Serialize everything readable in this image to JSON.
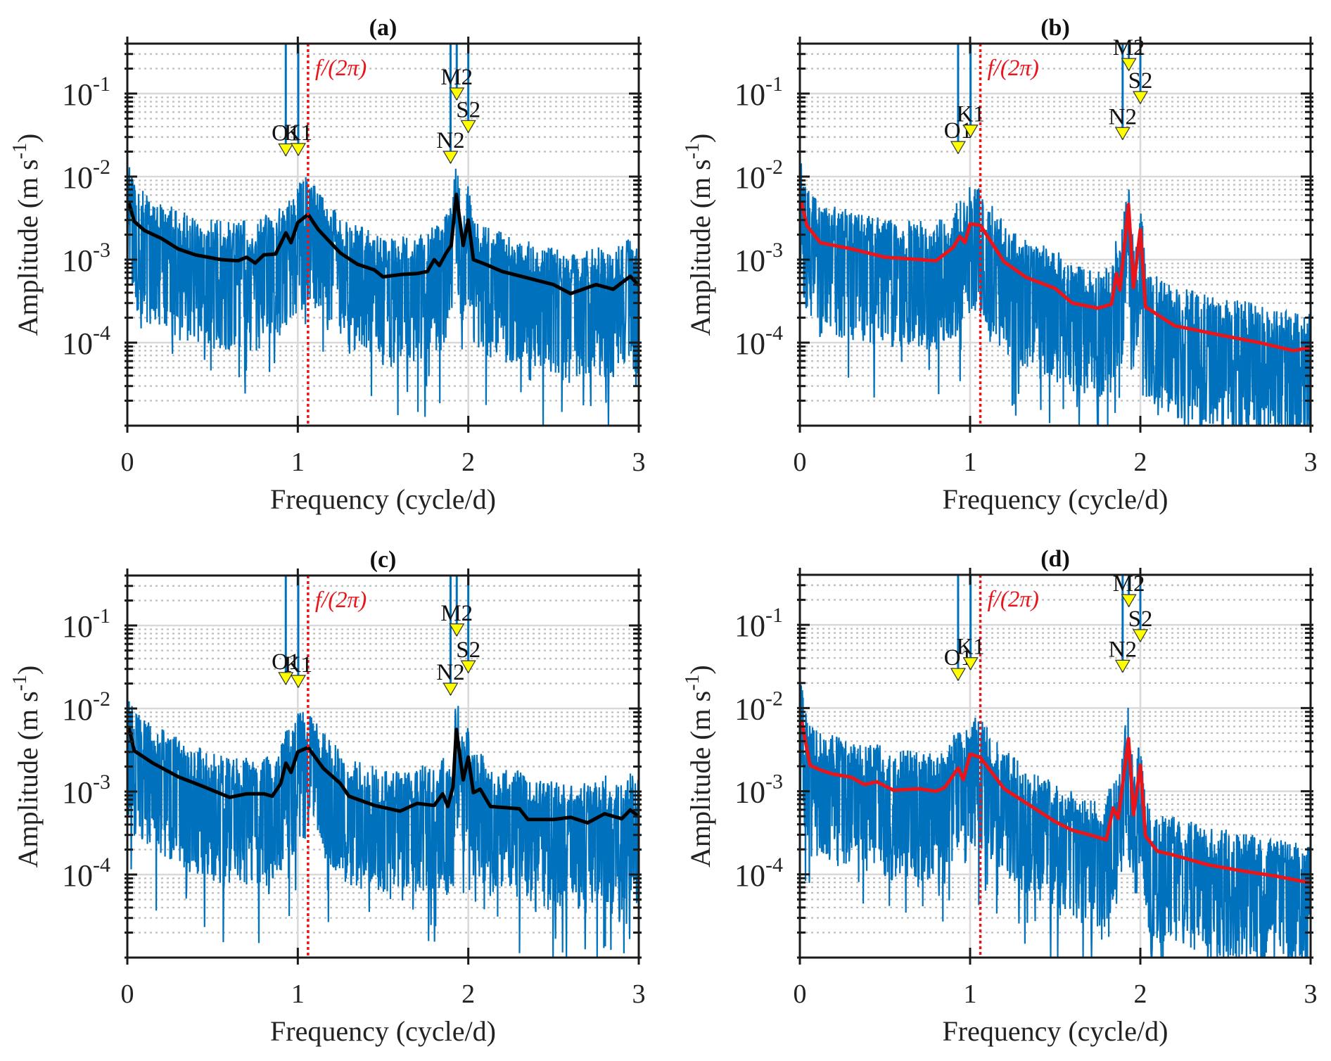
{
  "figure": {
    "panels": [
      "a",
      "b",
      "c",
      "d"
    ]
  },
  "chart_data": [
    {
      "panel": "a",
      "type": "line",
      "title": "(a)",
      "xlabel": "Frequency (cycle/d)",
      "ylabel": "Amplitude (m s-1)",
      "ylabel_parts": {
        "main": "Amplitude (m s",
        "sup": "-1",
        "end": ")"
      },
      "xlim": [
        0,
        3
      ],
      "ylim": [
        1e-05,
        0.4
      ],
      "yscale": "log",
      "xticks": [
        0,
        1,
        2,
        3
      ],
      "yticks": [
        {
          "base": "10",
          "exp": "-1",
          "value": 0.1
        },
        {
          "base": "10",
          "exp": "-2",
          "value": 0.01
        },
        {
          "base": "10",
          "exp": "-3",
          "value": 0.001
        },
        {
          "base": "10",
          "exp": "-4",
          "value": 0.0001
        }
      ],
      "grid": true,
      "inertial_frequency": {
        "label": "f/(2π)",
        "x": 1.06,
        "color": "#e8161b",
        "style": "dotted"
      },
      "raw_spectrum": {
        "name": "raw amplitude",
        "color": "#0072bd",
        "start_spike": 0.07
      },
      "smoothed": {
        "name": "smoothed amplitude",
        "color": "#000000",
        "x": [
          0.01,
          0.04,
          0.1,
          0.2,
          0.3,
          0.4,
          0.55,
          0.65,
          0.7,
          0.75,
          0.8,
          0.87,
          0.93,
          0.96,
          1.0,
          1.06,
          1.12,
          1.25,
          1.35,
          1.45,
          1.5,
          1.6,
          1.7,
          1.76,
          1.8,
          1.83,
          1.87,
          1.9,
          1.93,
          1.97,
          2.0,
          2.03,
          2.1,
          2.2,
          2.35,
          2.5,
          2.6,
          2.75,
          2.85,
          2.95,
          3.0
        ],
        "y": [
          0.0048,
          0.0029,
          0.00225,
          0.0018,
          0.00134,
          0.00114,
          0.001,
          0.00097,
          0.00107,
          0.00091,
          0.00114,
          0.00117,
          0.0021,
          0.0016,
          0.0028,
          0.0035,
          0.0023,
          0.0012,
          0.00088,
          0.00075,
          0.00062,
          0.00066,
          0.00068,
          0.00072,
          0.001,
          0.00085,
          0.0012,
          0.00148,
          0.0061,
          0.00148,
          0.003,
          0.001,
          0.00088,
          0.00072,
          0.0006,
          0.0005,
          0.00039,
          0.0005,
          0.00044,
          0.00063,
          0.00049
        ]
      },
      "constituents": [
        {
          "label": "O1",
          "x": 0.9295,
          "amplitude": 0.0178
        },
        {
          "label": "K1",
          "x": 1.0027,
          "amplitude": 0.018
        },
        {
          "label": "N2",
          "x": 1.896,
          "amplitude": 0.0145
        },
        {
          "label": "M2",
          "x": 1.9323,
          "amplitude": 0.084
        },
        {
          "label": "S2",
          "x": 2.0,
          "amplitude": 0.034
        }
      ]
    },
    {
      "panel": "b",
      "type": "line",
      "title": "(b)",
      "xlabel": "Frequency (cycle/d)",
      "ylabel": "Amplitude (m s-1)",
      "ylabel_parts": {
        "main": "Amplitude (m s",
        "sup": "-1",
        "end": ")"
      },
      "xlim": [
        0,
        3
      ],
      "ylim": [
        1e-05,
        0.4
      ],
      "yscale": "log",
      "xticks": [
        0,
        1,
        2,
        3
      ],
      "yticks": [
        {
          "base": "10",
          "exp": "-1",
          "value": 0.1
        },
        {
          "base": "10",
          "exp": "-2",
          "value": 0.01
        },
        {
          "base": "10",
          "exp": "-3",
          "value": 0.001
        },
        {
          "base": "10",
          "exp": "-4",
          "value": 0.0001
        }
      ],
      "grid": true,
      "inertial_frequency": {
        "label": "f/(2π)",
        "x": 1.06,
        "color": "#e8161b",
        "style": "dotted"
      },
      "raw_spectrum": {
        "name": "raw amplitude",
        "color": "#0072bd",
        "start_spike": 0.04
      },
      "smoothed": {
        "name": "smoothed amplitude",
        "color": "#e8161b",
        "x": [
          0.01,
          0.04,
          0.12,
          0.3,
          0.5,
          0.8,
          0.9,
          0.94,
          0.97,
          1.0,
          1.06,
          1.2,
          1.33,
          1.5,
          1.6,
          1.75,
          1.83,
          1.86,
          1.88,
          1.93,
          1.96,
          2.0,
          2.03,
          2.2,
          2.5,
          2.7,
          2.9,
          3.0
        ],
        "y": [
          0.0049,
          0.0026,
          0.0016,
          0.00135,
          0.00107,
          0.00097,
          0.0014,
          0.0019,
          0.0016,
          0.0027,
          0.0026,
          0.00094,
          0.00061,
          0.00045,
          0.0003,
          0.00026,
          0.00029,
          0.00068,
          0.00043,
          0.0046,
          0.00046,
          0.0023,
          0.00027,
          0.00016,
          0.00012,
          0.0001,
          8e-05,
          8.8e-05
        ]
      },
      "constituents": [
        {
          "label": "O1",
          "x": 0.9295,
          "amplitude": 0.019
        },
        {
          "label": "K1",
          "x": 1.0027,
          "amplitude": 0.03
        },
        {
          "label": "N2",
          "x": 1.896,
          "amplitude": 0.028
        },
        {
          "label": "M2",
          "x": 1.9323,
          "amplitude": 0.19
        },
        {
          "label": "S2",
          "x": 2.0,
          "amplitude": 0.076
        }
      ]
    },
    {
      "panel": "c",
      "type": "line",
      "title": "(c)",
      "xlabel": "Frequency (cycle/d)",
      "ylabel": "Amplitude (m s-1)",
      "ylabel_parts": {
        "main": "Amplitude (m s",
        "sup": "-1",
        "end": ")"
      },
      "xlim": [
        0,
        3
      ],
      "ylim": [
        1e-05,
        0.4
      ],
      "yscale": "log",
      "xticks": [
        0,
        1,
        2,
        3
      ],
      "yticks": [
        {
          "base": "10",
          "exp": "-1",
          "value": 0.1
        },
        {
          "base": "10",
          "exp": "-2",
          "value": 0.01
        },
        {
          "base": "10",
          "exp": "-3",
          "value": 0.001
        },
        {
          "base": "10",
          "exp": "-4",
          "value": 0.0001
        }
      ],
      "grid": true,
      "inertial_frequency": {
        "label": "f/(2π)",
        "x": 1.06,
        "color": "#e8161b",
        "style": "dotted"
      },
      "raw_spectrum": {
        "name": "raw amplitude",
        "color": "#0072bd",
        "start_spike": 0.13
      },
      "smoothed": {
        "name": "smoothed amplitude",
        "color": "#000000",
        "x": [
          0.01,
          0.04,
          0.15,
          0.3,
          0.45,
          0.6,
          0.7,
          0.8,
          0.85,
          0.9,
          0.93,
          0.96,
          1.0,
          1.06,
          1.15,
          1.25,
          1.3,
          1.45,
          1.6,
          1.7,
          1.8,
          1.85,
          1.88,
          1.91,
          1.93,
          1.97,
          2.0,
          2.03,
          2.07,
          2.13,
          2.3,
          2.35,
          2.5,
          2.6,
          2.7,
          2.8,
          2.9,
          2.95,
          3.0
        ],
        "y": [
          0.0058,
          0.0031,
          0.0022,
          0.0015,
          0.00114,
          0.00085,
          0.00094,
          0.00094,
          0.00088,
          0.00125,
          0.0022,
          0.0017,
          0.003,
          0.0034,
          0.0019,
          0.00125,
          0.00088,
          0.00068,
          0.00058,
          0.00072,
          0.00068,
          0.00094,
          0.00066,
          0.00114,
          0.0056,
          0.00138,
          0.0026,
          0.00097,
          0.00107,
          0.00066,
          0.00062,
          0.00046,
          0.00046,
          0.00049,
          0.00042,
          0.00054,
          0.00047,
          0.0006,
          0.0005
        ]
      },
      "constituents": [
        {
          "label": "O1",
          "x": 0.9295,
          "amplitude": 0.0195
        },
        {
          "label": "K1",
          "x": 1.0027,
          "amplitude": 0.018
        },
        {
          "label": "N2",
          "x": 1.896,
          "amplitude": 0.0145
        },
        {
          "label": "M2",
          "x": 1.9323,
          "amplitude": 0.075
        },
        {
          "label": "S2",
          "x": 2.0,
          "amplitude": 0.027
        }
      ]
    },
    {
      "panel": "d",
      "type": "line",
      "title": "(d)",
      "xlabel": "Frequency (cycle/d)",
      "ylabel": "Amplitude (m s-1)",
      "ylabel_parts": {
        "main": "Amplitude (m s",
        "sup": "-1",
        "end": ")"
      },
      "xlim": [
        0,
        3
      ],
      "ylim": [
        1e-05,
        0.4
      ],
      "yscale": "log",
      "xticks": [
        0,
        1,
        2,
        3
      ],
      "yticks": [
        {
          "base": "10",
          "exp": "-1",
          "value": 0.1
        },
        {
          "base": "10",
          "exp": "-2",
          "value": 0.01
        },
        {
          "base": "10",
          "exp": "-3",
          "value": 0.001
        },
        {
          "base": "10",
          "exp": "-4",
          "value": 0.0001
        }
      ],
      "grid": true,
      "inertial_frequency": {
        "label": "f/(2π)",
        "x": 1.06,
        "color": "#e8161b",
        "style": "dotted"
      },
      "raw_spectrum": {
        "name": "raw amplitude",
        "color": "#0072bd",
        "start_spike": 0.137
      },
      "smoothed": {
        "name": "smoothed amplitude",
        "color": "#e8161b",
        "x": [
          0.01,
          0.06,
          0.12,
          0.2,
          0.3,
          0.38,
          0.45,
          0.55,
          0.7,
          0.8,
          0.85,
          0.93,
          0.96,
          1.0,
          1.06,
          1.2,
          1.33,
          1.5,
          1.6,
          1.7,
          1.8,
          1.84,
          1.87,
          1.93,
          1.96,
          2.0,
          2.03,
          2.1,
          2.2,
          2.4,
          2.6,
          2.8,
          3.0
        ],
        "y": [
          0.007,
          0.00205,
          0.0018,
          0.0016,
          0.00148,
          0.0012,
          0.0013,
          0.00103,
          0.00107,
          0.001,
          0.0011,
          0.0019,
          0.00138,
          0.0028,
          0.00255,
          0.00107,
          0.00072,
          0.00043,
          0.00034,
          0.0003,
          0.00026,
          0.00063,
          0.00047,
          0.0043,
          0.00052,
          0.00205,
          0.00029,
          0.00019,
          0.00017,
          0.00013,
          0.00011,
          9.5e-05,
          7.9e-05
        ]
      },
      "constituents": [
        {
          "label": "O1",
          "x": 0.9295,
          "amplitude": 0.0215
        },
        {
          "label": "K1",
          "x": 1.0027,
          "amplitude": 0.029
        },
        {
          "label": "N2",
          "x": 1.896,
          "amplitude": 0.027
        },
        {
          "label": "M2",
          "x": 1.9323,
          "amplitude": 0.166
        },
        {
          "label": "S2",
          "x": 2.0,
          "amplitude": 0.063
        }
      ]
    }
  ]
}
